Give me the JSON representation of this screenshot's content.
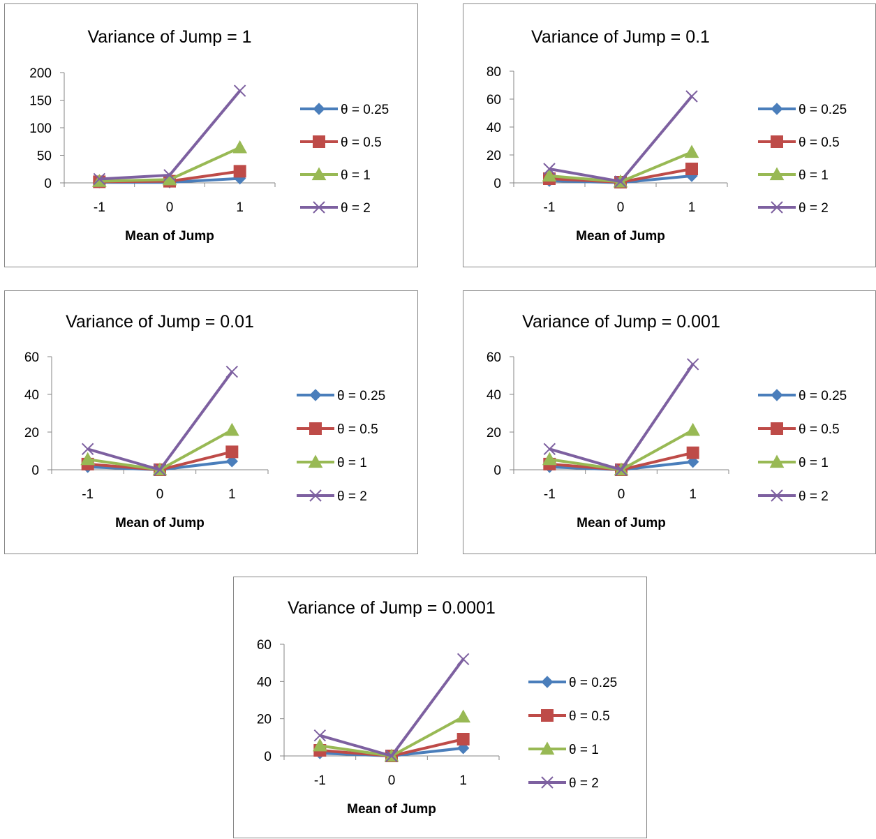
{
  "colors": {
    "theta_0_25": "#4a7ebb",
    "theta_0_5": "#be4b48",
    "theta_1": "#98b954",
    "theta_2": "#7d60a0",
    "axis": "#868686",
    "border": "#868686"
  },
  "chart_data": [
    {
      "type": "line",
      "title": "Variance of Jump = 1",
      "xlabel": "Mean of Jump",
      "ylabel": "",
      "categories": [
        "-1",
        "0",
        "1"
      ],
      "ylim": [
        0,
        200
      ],
      "yticks": [
        "0",
        "50",
        "100",
        "150",
        "200"
      ],
      "grid": false,
      "legend_position": "right",
      "series": [
        {
          "name": "θ = 0.25",
          "marker": "diamond",
          "values": [
            1,
            1,
            8
          ]
        },
        {
          "name": "θ = 0.5",
          "marker": "square",
          "values": [
            2,
            3,
            21
          ]
        },
        {
          "name": "θ = 1",
          "marker": "triangle",
          "values": [
            3,
            6,
            64
          ]
        },
        {
          "name": "θ = 2",
          "marker": "x",
          "values": [
            7,
            14,
            167
          ]
        }
      ]
    },
    {
      "type": "line",
      "title": "Variance of Jump = 0.1",
      "xlabel": "Mean of Jump",
      "ylabel": "",
      "categories": [
        "-1",
        "0",
        "1"
      ],
      "ylim": [
        0,
        80
      ],
      "yticks": [
        "0",
        "20",
        "40",
        "60",
        "80"
      ],
      "grid": false,
      "legend_position": "right",
      "series": [
        {
          "name": "θ = 0.25",
          "marker": "diamond",
          "values": [
            1.5,
            0.2,
            5
          ]
        },
        {
          "name": "θ = 0.5",
          "marker": "square",
          "values": [
            3,
            0.5,
            10
          ]
        },
        {
          "name": "θ = 1",
          "marker": "triangle",
          "values": [
            5,
            0.8,
            22
          ]
        },
        {
          "name": "θ = 2",
          "marker": "x",
          "values": [
            10,
            1,
            62
          ]
        }
      ]
    },
    {
      "type": "line",
      "title": "Variance of Jump = 0.01",
      "xlabel": "Mean of Jump",
      "ylabel": "",
      "categories": [
        "-1",
        "0",
        "1"
      ],
      "ylim": [
        0,
        60
      ],
      "yticks": [
        "0",
        "20",
        "40",
        "60"
      ],
      "grid": false,
      "legend_position": "right",
      "series": [
        {
          "name": "θ = 0.25",
          "marker": "diamond",
          "values": [
            1.5,
            0,
            4.5
          ]
        },
        {
          "name": "θ = 0.5",
          "marker": "square",
          "values": [
            3,
            0,
            9.5
          ]
        },
        {
          "name": "θ = 1",
          "marker": "triangle",
          "values": [
            5.5,
            0,
            21
          ]
        },
        {
          "name": "θ = 2",
          "marker": "x",
          "values": [
            11,
            0,
            52
          ]
        }
      ]
    },
    {
      "type": "line",
      "title": "Variance of Jump = 0.001",
      "xlabel": "Mean of Jump",
      "ylabel": "",
      "categories": [
        "-1",
        "0",
        "1"
      ],
      "ylim": [
        0,
        60
      ],
      "yticks": [
        "0",
        "20",
        "40",
        "60"
      ],
      "grid": false,
      "legend_position": "right",
      "series": [
        {
          "name": "θ = 0.25",
          "marker": "diamond",
          "values": [
            1.5,
            0,
            4.2
          ]
        },
        {
          "name": "θ = 0.5",
          "marker": "square",
          "values": [
            3,
            0,
            9
          ]
        },
        {
          "name": "θ = 1",
          "marker": "triangle",
          "values": [
            5.5,
            0,
            21
          ]
        },
        {
          "name": "θ = 2",
          "marker": "x",
          "values": [
            11,
            0,
            56
          ]
        }
      ]
    },
    {
      "type": "line",
      "title": "Variance of Jump = 0.0001",
      "xlabel": "Mean of Jump",
      "ylabel": "",
      "categories": [
        "-1",
        "0",
        "1"
      ],
      "ylim": [
        0,
        60
      ],
      "yticks": [
        "0",
        "20",
        "40",
        "60"
      ],
      "grid": false,
      "legend_position": "right",
      "series": [
        {
          "name": "θ = 0.25",
          "marker": "diamond",
          "values": [
            1.5,
            0,
            4.2
          ]
        },
        {
          "name": "θ = 0.5",
          "marker": "square",
          "values": [
            3,
            0,
            9
          ]
        },
        {
          "name": "θ = 1",
          "marker": "triangle",
          "values": [
            5.5,
            0,
            21
          ]
        },
        {
          "name": "θ = 2",
          "marker": "x",
          "values": [
            11,
            0,
            52
          ]
        }
      ]
    }
  ]
}
